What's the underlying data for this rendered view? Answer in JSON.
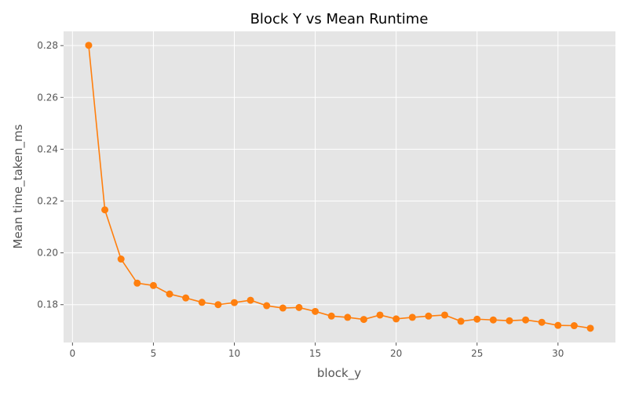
{
  "chart_data": {
    "type": "line",
    "title": "Block Y vs Mean Runtime",
    "xlabel": "block_y",
    "ylabel": "Mean time_taken_ms",
    "xlim": [
      -0.55,
      33.55
    ],
    "ylim": [
      0.1654,
      0.2855
    ],
    "xticks": [
      0,
      5,
      10,
      15,
      20,
      25,
      30
    ],
    "yticks": [
      0.18,
      0.2,
      0.22,
      0.24,
      0.26,
      0.28
    ],
    "grid": true,
    "x": [
      1,
      2,
      3,
      4,
      5,
      6,
      7,
      8,
      9,
      10,
      11,
      12,
      13,
      14,
      15,
      16,
      17,
      18,
      19,
      20,
      21,
      22,
      23,
      24,
      25,
      26,
      27,
      28,
      29,
      30,
      31,
      32
    ],
    "series": [
      {
        "color": "#ff7f0e",
        "marker": "circle",
        "values": [
          0.2801,
          0.2166,
          0.1976,
          0.1883,
          0.1874,
          0.1841,
          0.1826,
          0.1809,
          0.18,
          0.1808,
          0.1817,
          0.1796,
          0.1787,
          0.1789,
          0.1774,
          0.1756,
          0.1751,
          0.1743,
          0.176,
          0.1745,
          0.1751,
          0.1756,
          0.176,
          0.1736,
          0.1744,
          0.1741,
          0.1738,
          0.1741,
          0.1732,
          0.172,
          0.1719,
          0.1709
        ]
      }
    ],
    "style": {
      "plot_bg": "#e5e5e5",
      "grid_color": "#ffffff",
      "text_color": "#555555",
      "title_color": "#000000"
    }
  }
}
